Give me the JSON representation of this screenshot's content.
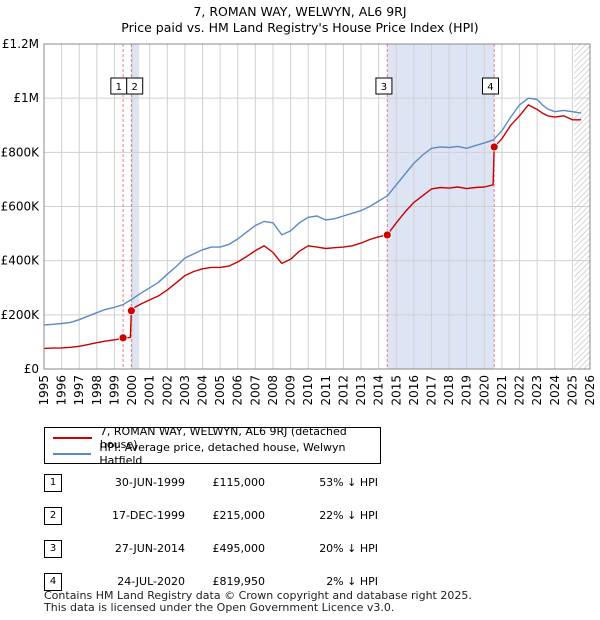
{
  "title_line1": "7, ROMAN WAY, WELWYN, AL6 9RJ",
  "title_line2": "Price paid vs. HM Land Registry's House Price Index (HPI)",
  "colors": {
    "property": "#cc0000",
    "hpi": "#5b8ac6",
    "shade": "#dde5f5",
    "marker_line": "#e08080",
    "grid": "#d0d0d0"
  },
  "chart_data": {
    "type": "line",
    "title": "Price paid vs. HM Land Registry's House Price Index (HPI)",
    "xlim": [
      1995,
      2026
    ],
    "ylim": [
      0,
      1200000
    ],
    "y_ticks": [
      {
        "value": 0,
        "label": "£0"
      },
      {
        "value": 200000,
        "label": "£200K"
      },
      {
        "value": 400000,
        "label": "£400K"
      },
      {
        "value": 600000,
        "label": "£600K"
      },
      {
        "value": 800000,
        "label": "£800K"
      },
      {
        "value": 1000000,
        "label": "£1M"
      },
      {
        "value": 1200000,
        "label": "£1.2M"
      }
    ],
    "x_ticks": [
      "1995",
      "1996",
      "1997",
      "1998",
      "1999",
      "2000",
      "2001",
      "2002",
      "2003",
      "2004",
      "2005",
      "2006",
      "2007",
      "2008",
      "2009",
      "2010",
      "2011",
      "2012",
      "2013",
      "2014",
      "2015",
      "2016",
      "2017",
      "2018",
      "2019",
      "2020",
      "2021",
      "2022",
      "2023",
      "2024",
      "2025",
      "2026"
    ],
    "grid": true,
    "forecast_from": 2025.1,
    "shaded_ranges": [
      [
        1999.96,
        2000.4
      ],
      [
        2014.49,
        2020.56
      ]
    ],
    "series": [
      {
        "name": "7, ROMAN WAY, WELWYN, AL6 9RJ (detached house)",
        "x": [
          1995.0,
          1995.5,
          1996.0,
          1996.5,
          1997.0,
          1997.5,
          1998.0,
          1998.5,
          1999.0,
          1999.4,
          1999.49,
          1999.9,
          1999.96,
          2000.0,
          2000.5,
          2001.0,
          2001.5,
          2002.0,
          2002.5,
          2003.0,
          2003.5,
          2004.0,
          2004.5,
          2005.0,
          2005.5,
          2006.0,
          2006.5,
          2007.0,
          2007.5,
          2008.0,
          2008.5,
          2009.0,
          2009.5,
          2010.0,
          2010.5,
          2011.0,
          2011.5,
          2012.0,
          2012.5,
          2013.0,
          2013.5,
          2014.0,
          2014.49,
          2015.0,
          2015.5,
          2016.0,
          2016.5,
          2017.0,
          2017.5,
          2018.0,
          2018.5,
          2019.0,
          2019.5,
          2020.0,
          2020.5,
          2020.56,
          2021.0,
          2021.5,
          2022.0,
          2022.5,
          2023.0,
          2023.3,
          2023.6,
          2024.0,
          2024.5,
          2025.0,
          2025.5
        ],
        "values": [
          76000,
          77000,
          78000,
          80000,
          84000,
          90000,
          97000,
          103000,
          108000,
          112000,
          115000,
          116000,
          215000,
          222000,
          240000,
          255000,
          270000,
          292000,
          318000,
          345000,
          360000,
          370000,
          375000,
          375000,
          380000,
          395000,
          415000,
          437000,
          455000,
          430000,
          390000,
          405000,
          435000,
          455000,
          450000,
          445000,
          448000,
          450000,
          455000,
          465000,
          478000,
          488000,
          495000,
          540000,
          580000,
          615000,
          640000,
          665000,
          670000,
          668000,
          672000,
          666000,
          670000,
          672000,
          680000,
          819950,
          850000,
          900000,
          935000,
          975000,
          958000,
          945000,
          935000,
          930000,
          935000,
          920000,
          920000
        ]
      },
      {
        "name": "HPI: Average price, detached house, Welwyn Hatfield",
        "x": [
          1995.0,
          1995.5,
          1996.0,
          1996.5,
          1997.0,
          1997.5,
          1998.0,
          1998.5,
          1999.0,
          1999.5,
          2000.0,
          2000.5,
          2001.0,
          2001.5,
          2002.0,
          2002.5,
          2003.0,
          2003.5,
          2004.0,
          2004.5,
          2005.0,
          2005.5,
          2006.0,
          2006.5,
          2007.0,
          2007.5,
          2008.0,
          2008.5,
          2009.0,
          2009.5,
          2010.0,
          2010.5,
          2011.0,
          2011.5,
          2012.0,
          2012.5,
          2013.0,
          2013.5,
          2014.0,
          2014.5,
          2015.0,
          2015.5,
          2016.0,
          2016.5,
          2017.0,
          2017.5,
          2018.0,
          2018.5,
          2019.0,
          2019.5,
          2020.0,
          2020.5,
          2021.0,
          2021.5,
          2022.0,
          2022.5,
          2023.0,
          2023.3,
          2023.6,
          2024.0,
          2024.5,
          2025.0,
          2025.5
        ],
        "values": [
          163000,
          165000,
          168000,
          172000,
          182000,
          195000,
          208000,
          220000,
          228000,
          238000,
          258000,
          280000,
          300000,
          320000,
          350000,
          378000,
          410000,
          425000,
          440000,
          450000,
          450000,
          460000,
          480000,
          505000,
          530000,
          545000,
          540000,
          495000,
          510000,
          540000,
          560000,
          565000,
          550000,
          555000,
          565000,
          575000,
          585000,
          600000,
          620000,
          640000,
          680000,
          720000,
          760000,
          790000,
          815000,
          820000,
          818000,
          822000,
          815000,
          825000,
          835000,
          845000,
          880000,
          930000,
          975000,
          1000000,
          995000,
          975000,
          960000,
          950000,
          955000,
          950000,
          945000
        ]
      }
    ],
    "sales": [
      {
        "num": "1",
        "x": 1999.49,
        "value": 115000,
        "label_x": 1999.25
      },
      {
        "num": "2",
        "x": 1999.96,
        "value": 215000,
        "label_x": 2000.15
      },
      {
        "num": "3",
        "x": 2014.49,
        "value": 495000,
        "label_x": 2014.3
      },
      {
        "num": "4",
        "x": 2020.56,
        "value": 819950,
        "label_x": 2020.35
      }
    ]
  },
  "legend": {
    "property_label": "7, ROMAN WAY, WELWYN, AL6 9RJ (detached house)",
    "hpi_label": "HPI: Average price, detached house, Welwyn Hatfield"
  },
  "sales_table": [
    {
      "num": "1",
      "date": "30-JUN-1999",
      "price": "£115,000",
      "hpi": "53% ↓ HPI"
    },
    {
      "num": "2",
      "date": "17-DEC-1999",
      "price": "£215,000",
      "hpi": "22% ↓ HPI"
    },
    {
      "num": "3",
      "date": "27-JUN-2014",
      "price": "£495,000",
      "hpi": "20% ↓ HPI"
    },
    {
      "num": "4",
      "date": "24-JUL-2020",
      "price": "£819,950",
      "hpi": "2% ↓ HPI"
    }
  ],
  "footer": {
    "line1": "Contains HM Land Registry data © Crown copyright and database right 2025.",
    "line2": "This data is licensed under the Open Government Licence v3.0."
  }
}
